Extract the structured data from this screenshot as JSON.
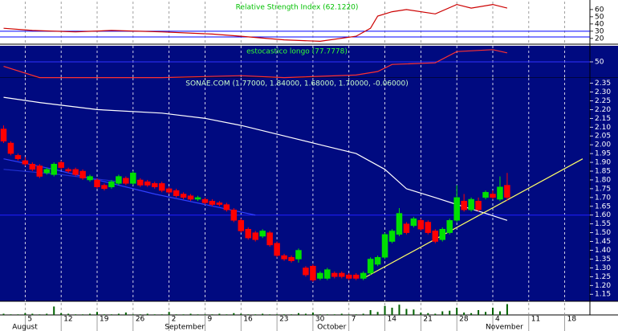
{
  "chart_data": [
    {
      "type": "line",
      "title": "Relative Strength Index (62.1220)",
      "title_color": "#00c000",
      "x": [
        0,
        4,
        10,
        15,
        22,
        29,
        33,
        39,
        44,
        49,
        51,
        52,
        54,
        56,
        60,
        63,
        65,
        68,
        70
      ],
      "series": [
        {
          "color": "#cc0000",
          "values": [
            34,
            31,
            29,
            31,
            29,
            26,
            23,
            18,
            16,
            23,
            34,
            51,
            57,
            60,
            54,
            67,
            62,
            67,
            62
          ]
        }
      ],
      "xlim": [
        -0.5,
        81.5
      ],
      "ylim": [
        12,
        71
      ],
      "yticks": [
        60,
        50,
        40,
        30,
        20
      ],
      "hlines": [
        30,
        22
      ],
      "hline_color": "#0000ff"
    },
    {
      "type": "line",
      "title": "estocastico longo (77.7778)",
      "title_color": "#33ff33",
      "x": [
        0,
        5,
        22,
        33,
        39,
        49,
        52,
        54,
        60,
        63,
        68,
        70
      ],
      "series": [
        {
          "color": "#ff3030",
          "values": [
            36,
            1,
            1,
            7,
            1,
            9,
            20,
            42,
            47,
            82,
            88,
            78
          ]
        }
      ],
      "xlim": [
        -0.5,
        81.5
      ],
      "ylim": [
        0,
        100
      ],
      "yticks": [
        50
      ],
      "hlines": [
        50
      ],
      "hline_color": "#3030ff"
    },
    {
      "type": "candlestick",
      "title": "SONAE.COM (1.77000, 1.84000, 1.68000, 1.70000, -0.06000)",
      "title_color": "#ccffcc",
      "x": [
        0,
        1,
        2,
        3,
        4,
        5,
        6,
        7,
        8,
        9,
        10,
        11,
        12,
        13,
        14,
        15,
        16,
        17,
        18,
        19,
        20,
        21,
        22,
        23,
        24,
        25,
        26,
        27,
        28,
        29,
        30,
        31,
        32,
        33,
        34,
        35,
        36,
        37,
        38,
        39,
        40,
        41,
        42,
        43,
        44,
        45,
        46,
        47,
        48,
        49,
        50,
        51,
        52,
        53,
        54,
        55,
        56,
        57,
        58,
        59,
        60,
        61,
        62,
        63,
        64,
        65,
        66,
        67,
        68,
        69,
        70
      ],
      "open": [
        2.09,
        2.01,
        1.94,
        1.91,
        1.89,
        1.88,
        1.84,
        1.83,
        1.9,
        1.86,
        1.86,
        1.85,
        1.8,
        1.8,
        1.77,
        1.76,
        1.78,
        1.81,
        1.78,
        1.8,
        1.79,
        1.78,
        1.78,
        1.75,
        1.74,
        1.72,
        1.71,
        1.69,
        1.69,
        1.68,
        1.67,
        1.66,
        1.63,
        1.57,
        1.52,
        1.5,
        1.48,
        1.5,
        1.44,
        1.37,
        1.36,
        1.35,
        1.3,
        1.31,
        1.24,
        1.24,
        1.27,
        1.27,
        1.26,
        1.26,
        1.24,
        1.27,
        1.32,
        1.36,
        1.45,
        1.49,
        1.55,
        1.54,
        1.57,
        1.56,
        1.51,
        1.46,
        1.5,
        1.57,
        1.68,
        1.63,
        1.68,
        1.7,
        1.72,
        1.69,
        1.77
      ],
      "high": [
        2.11,
        2.02,
        1.95,
        1.93,
        1.9,
        1.89,
        1.87,
        1.9,
        1.91,
        1.87,
        1.87,
        1.86,
        1.83,
        1.81,
        1.78,
        1.8,
        1.83,
        1.82,
        1.85,
        1.81,
        1.8,
        1.79,
        1.79,
        1.76,
        1.75,
        1.73,
        1.72,
        1.71,
        1.7,
        1.69,
        1.68,
        1.67,
        1.64,
        1.58,
        1.53,
        1.51,
        1.52,
        1.51,
        1.45,
        1.38,
        1.37,
        1.41,
        1.31,
        1.32,
        1.28,
        1.3,
        1.28,
        1.28,
        1.27,
        1.27,
        1.28,
        1.36,
        1.37,
        1.5,
        1.52,
        1.64,
        1.56,
        1.59,
        1.58,
        1.57,
        1.52,
        1.53,
        1.58,
        1.77,
        1.72,
        1.7,
        1.7,
        1.74,
        1.74,
        1.82,
        1.84
      ],
      "low": [
        2.01,
        1.94,
        1.91,
        1.88,
        1.85,
        1.81,
        1.83,
        1.82,
        1.86,
        1.84,
        1.82,
        1.8,
        1.79,
        1.75,
        1.74,
        1.75,
        1.77,
        1.77,
        1.77,
        1.76,
        1.76,
        1.75,
        1.73,
        1.72,
        1.7,
        1.69,
        1.68,
        1.68,
        1.66,
        1.65,
        1.65,
        1.62,
        1.56,
        1.5,
        1.46,
        1.45,
        1.47,
        1.42,
        1.36,
        1.34,
        1.33,
        1.33,
        1.25,
        1.22,
        1.23,
        1.23,
        1.24,
        1.24,
        1.23,
        1.23,
        1.23,
        1.26,
        1.31,
        1.35,
        1.44,
        1.48,
        1.49,
        1.53,
        1.51,
        1.49,
        1.44,
        1.45,
        1.49,
        1.56,
        1.62,
        1.62,
        1.62,
        1.69,
        1.69,
        1.68,
        1.68
      ],
      "close": [
        2.02,
        1.95,
        1.92,
        1.89,
        1.86,
        1.82,
        1.86,
        1.89,
        1.87,
        1.85,
        1.83,
        1.81,
        1.82,
        1.76,
        1.75,
        1.79,
        1.82,
        1.78,
        1.84,
        1.77,
        1.77,
        1.76,
        1.74,
        1.73,
        1.71,
        1.7,
        1.69,
        1.7,
        1.67,
        1.66,
        1.66,
        1.63,
        1.57,
        1.51,
        1.47,
        1.46,
        1.51,
        1.43,
        1.37,
        1.35,
        1.34,
        1.4,
        1.26,
        1.23,
        1.27,
        1.29,
        1.25,
        1.25,
        1.24,
        1.24,
        1.27,
        1.35,
        1.36,
        1.49,
        1.51,
        1.61,
        1.5,
        1.58,
        1.52,
        1.5,
        1.45,
        1.52,
        1.57,
        1.7,
        1.63,
        1.69,
        1.63,
        1.73,
        1.7,
        1.76,
        1.7
      ],
      "up_color": "#00e000",
      "down_color": "#ff0000",
      "overlays": [
        {
          "color": "#ffffff",
          "x": [
            0,
            5,
            13,
            22,
            28,
            33,
            39,
            44,
            49,
            53,
            56,
            60,
            63,
            67,
            70
          ],
          "values": [
            2.27,
            2.24,
            2.2,
            2.18,
            2.15,
            2.11,
            2.05,
            2.0,
            1.95,
            1.86,
            1.75,
            1.7,
            1.66,
            1.61,
            1.57
          ]
        },
        {
          "color": "#3040ff",
          "x": [
            0,
            7,
            14,
            21,
            28,
            35
          ],
          "values": [
            1.92,
            1.86,
            1.79,
            1.72,
            1.66,
            1.6
          ]
        },
        {
          "color": "#2030d0",
          "x": [
            0,
            8,
            16
          ],
          "values": [
            1.86,
            1.83,
            1.79
          ]
        },
        {
          "color": "#ffff66",
          "x": [
            50,
            80.5
          ],
          "values": [
            1.24,
            1.92
          ]
        }
      ],
      "xlim": [
        -0.5,
        81.5
      ],
      "ylim": [
        1.11,
        2.38
      ],
      "yticks": [
        2.35,
        {
          "value": 2.3,
          "label": "2.30"
        },
        2.25,
        {
          "value": 2.2,
          "label": "2.20"
        },
        2.15,
        {
          "value": 2.1,
          "label": "2.10"
        },
        2.05,
        {
          "value": 2,
          "label": "2.00"
        },
        1.95,
        {
          "value": 1.9,
          "label": "1.90"
        },
        1.85,
        {
          "value": 1.8,
          "label": "1.80"
        },
        1.75,
        {
          "value": 1.7,
          "label": "1.70"
        },
        1.65,
        {
          "value": 1.6,
          "label": "1.60"
        },
        1.55,
        {
          "value": 1.5,
          "label": "1.50"
        },
        1.45,
        {
          "value": 1.4,
          "label": "1.40"
        },
        1.35,
        {
          "value": 1.3,
          "label": "1.30"
        },
        1.25,
        {
          "value": 1.2,
          "label": "1.20"
        },
        1.15
      ],
      "hlines": [
        1.6
      ],
      "hline_color": "#2020ff"
    },
    {
      "type": "bar",
      "color": "#006000",
      "x": [
        0,
        1,
        2,
        3,
        4,
        5,
        6,
        7,
        8,
        9,
        10,
        11,
        12,
        13,
        14,
        15,
        16,
        17,
        18,
        19,
        20,
        21,
        22,
        23,
        24,
        25,
        26,
        27,
        28,
        29,
        30,
        31,
        32,
        33,
        34,
        35,
        36,
        37,
        38,
        39,
        40,
        41,
        42,
        43,
        44,
        45,
        46,
        47,
        48,
        49,
        50,
        51,
        52,
        53,
        54,
        55,
        56,
        57,
        58,
        59,
        60,
        61,
        62,
        63,
        64,
        65,
        66,
        67,
        68,
        69,
        70
      ],
      "values": [
        2,
        1,
        1,
        3,
        2,
        1,
        2,
        14,
        3,
        2,
        1,
        1,
        2,
        5,
        1,
        1,
        2,
        4,
        1,
        1,
        2,
        1,
        1,
        5,
        1,
        1,
        2,
        1,
        1,
        1,
        2,
        1,
        3,
        2,
        1,
        1,
        2,
        1,
        1,
        1,
        1,
        3,
        2,
        4,
        1,
        1,
        1,
        2,
        1,
        1,
        2,
        8,
        5,
        15,
        12,
        17,
        10,
        9,
        4,
        3,
        2,
        6,
        7,
        12,
        4,
        3,
        8,
        5,
        12,
        6,
        18
      ],
      "xlim": [
        -0.5,
        81.5
      ],
      "ylim": [
        0,
        20
      ],
      "xticks": [
        {
          "value": 3,
          "label": "5"
        },
        {
          "value": 8,
          "label": "12"
        },
        {
          "value": 13,
          "label": "19"
        },
        {
          "value": 18,
          "label": "26"
        },
        {
          "value": 23,
          "label": "2"
        },
        {
          "value": 28,
          "label": "9"
        },
        {
          "value": 33,
          "label": "16"
        },
        {
          "value": 38,
          "label": "23"
        },
        {
          "value": 43,
          "label": "30"
        },
        {
          "value": 48,
          "label": "7"
        },
        {
          "value": 53,
          "label": "14"
        },
        {
          "value": 58,
          "label": "21"
        },
        {
          "value": 63,
          "label": "28"
        },
        {
          "value": 68,
          "label": "4"
        },
        {
          "value": 73,
          "label": "11"
        },
        {
          "value": 78,
          "label": "18"
        }
      ],
      "month_ticks": [
        {
          "value": 1.2,
          "label": "August"
        },
        {
          "value": 22.4,
          "label": "September"
        },
        {
          "value": 43.6,
          "label": "October"
        },
        {
          "value": 67,
          "label": "November"
        }
      ]
    }
  ]
}
